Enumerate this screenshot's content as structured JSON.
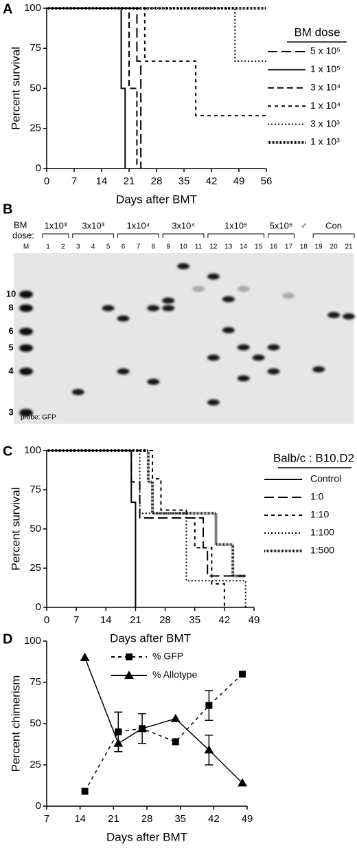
{
  "panel_labels": [
    "A",
    "B",
    "C",
    "D"
  ],
  "chart_data": [
    {
      "type": "survival",
      "xlabel": "Days after BMT",
      "ylabel": "Percent survival",
      "legend_title": "BM dose",
      "xlim": [
        0,
        56
      ],
      "ylim": [
        0,
        100
      ],
      "xticks": [
        0,
        7,
        14,
        21,
        28,
        35,
        42,
        49,
        56
      ],
      "yticks": [
        0,
        25,
        50,
        75,
        100
      ],
      "series": [
        {
          "name": "5 x 10⁵",
          "color": "#000",
          "line_style": "long-dash",
          "x": [
            0,
            23,
            24
          ],
          "values": [
            100,
            67,
            0
          ]
        },
        {
          "name": "1 x 10⁵",
          "color": "#000",
          "line_style": "solid",
          "x": [
            0,
            19,
            20
          ],
          "values": [
            100,
            50,
            0
          ]
        },
        {
          "name": "3 x 10⁴",
          "color": "#000",
          "line_style": "dash",
          "x": [
            0,
            21,
            23
          ],
          "values": [
            100,
            50,
            0
          ]
        },
        {
          "name": "1 x 10⁴",
          "color": "#000",
          "line_style": "short-dash",
          "x": [
            0,
            25,
            38,
            56
          ],
          "values": [
            100,
            67,
            33,
            33
          ]
        },
        {
          "name": "3 x 10³",
          "color": "#000",
          "line_style": "dot",
          "x": [
            0,
            48,
            56
          ],
          "values": [
            100,
            67,
            67
          ]
        },
        {
          "name": "1 x 10³",
          "color": "#000",
          "line_style": "dense-dot",
          "x": [
            0,
            56
          ],
          "values": [
            100,
            100
          ]
        }
      ]
    },
    {
      "type": "survival",
      "xlabel": "Days after BMT",
      "ylabel": "Percent survival",
      "legend_title": "Balb/c : B10.D2",
      "xlim": [
        0,
        49
      ],
      "ylim": [
        0,
        100
      ],
      "xticks": [
        0,
        7,
        14,
        21,
        28,
        35,
        42,
        49
      ],
      "yticks": [
        0,
        25,
        50,
        75,
        100
      ],
      "series": [
        {
          "name": "Control",
          "color": "#000",
          "line_style": "solid",
          "x": [
            0,
            20,
            21
          ],
          "values": [
            100,
            67,
            0
          ]
        },
        {
          "name": "1:0",
          "color": "#000",
          "line_style": "long-dash",
          "x": [
            0,
            20,
            22,
            37,
            38,
            47
          ],
          "values": [
            100,
            80,
            57,
            38,
            20,
            20
          ]
        },
        {
          "name": "1:10",
          "color": "#000",
          "line_style": "short-dash",
          "x": [
            0,
            25,
            27,
            33,
            35,
            39,
            42
          ],
          "values": [
            100,
            82,
            62,
            57,
            38,
            15,
            0
          ]
        },
        {
          "name": "1:100",
          "color": "#000",
          "line_style": "dot",
          "x": [
            0,
            22,
            33,
            47
          ],
          "values": [
            100,
            60,
            17,
            0
          ]
        },
        {
          "name": "1:500",
          "color": "#000",
          "line_style": "dense-dot",
          "x": [
            0,
            24,
            25,
            40,
            44,
            47
          ],
          "values": [
            100,
            80,
            60,
            40,
            20,
            20
          ]
        }
      ]
    },
    {
      "type": "line",
      "xlabel": "Days after BMT",
      "ylabel": "Percent chimerism",
      "xlim": [
        7,
        49
      ],
      "ylim": [
        0,
        100
      ],
      "xticks": [
        7,
        14,
        21,
        28,
        35,
        42,
        49
      ],
      "yticks": [
        0,
        25,
        50,
        75,
        100
      ],
      "series": [
        {
          "name": "% GFP",
          "color": "#000",
          "line_style": "short-dash",
          "marker": "square",
          "x": [
            15,
            22,
            27,
            34,
            41,
            48
          ],
          "values": [
            9,
            45,
            47,
            39,
            61,
            80
          ],
          "errors": [
            null,
            12,
            null,
            null,
            9,
            null
          ]
        },
        {
          "name": "% Allotype",
          "color": "#000",
          "line_style": "solid",
          "marker": "triangle",
          "x": [
            15,
            22,
            27,
            34,
            41,
            48
          ],
          "values": [
            90,
            38,
            47,
            53,
            34,
            14
          ],
          "errors": [
            null,
            null,
            9,
            null,
            9,
            null
          ]
        }
      ]
    }
  ],
  "gel": {
    "dose_label": [
      "BM",
      "dose:"
    ],
    "marker_lane": "M",
    "probe_label": "probe: GFP",
    "marker_sizes": [
      10,
      8,
      6,
      5,
      4,
      3
    ],
    "lane_numbers": [
      1,
      2,
      3,
      4,
      5,
      6,
      7,
      8,
      9,
      10,
      11,
      12,
      13,
      14,
      15,
      16,
      17,
      18,
      19,
      20,
      21
    ],
    "groups": [
      {
        "label": "1x10³",
        "first": 1,
        "last": 2
      },
      {
        "label": "3x10³",
        "first": 3,
        "last": 5
      },
      {
        "label": "1x10⁴",
        "first": 6,
        "last": 8
      },
      {
        "label": "3x10⁴",
        "first": 9,
        "last": 11
      },
      {
        "label": "1x10⁵",
        "first": 12,
        "last": 15
      },
      {
        "label": "5x10⁵",
        "first": 16,
        "last": 17
      },
      {
        "label": "♂",
        "first": 18,
        "last": 18
      },
      {
        "label": "Con",
        "first": 19,
        "last": 21
      }
    ]
  }
}
